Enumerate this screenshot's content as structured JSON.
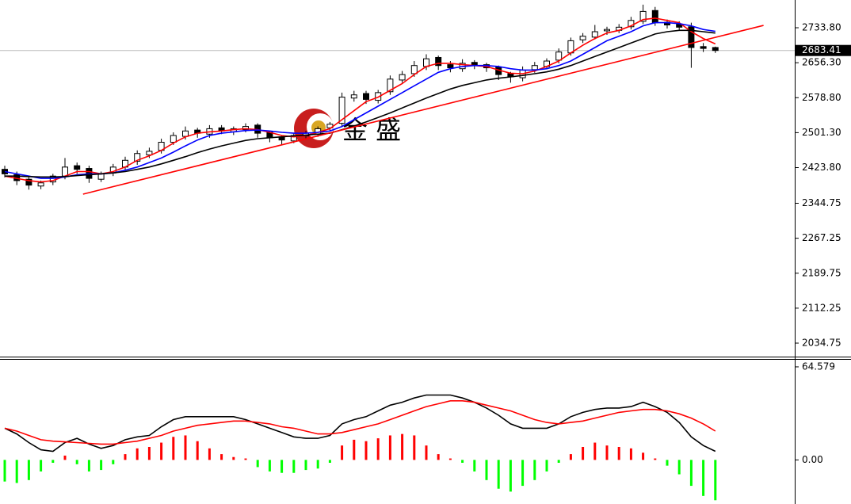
{
  "watermark": "金 盛",
  "chart_data": [
    {
      "type": "candlestick",
      "ylim": [
        2004.9,
        2795.3
      ],
      "yticks": [
        {
          "value": 2733.8,
          "label": "2733.80"
        },
        {
          "value": 2656.3,
          "label": "2656.30"
        },
        {
          "value": 2578.8,
          "label": "2578.80"
        },
        {
          "value": 2501.3,
          "label": "2501.30"
        },
        {
          "value": 2423.8,
          "label": "2423.80"
        },
        {
          "value": 2344.75,
          "label": "2344.75"
        },
        {
          "value": 2267.25,
          "label": "2267.25"
        },
        {
          "value": 2189.75,
          "label": "2189.75"
        },
        {
          "value": 2112.25,
          "label": "2112.25"
        },
        {
          "value": 2034.75,
          "label": "2034.75"
        }
      ],
      "current_price": 2683.41,
      "up_color": "#ffffff",
      "down_color": "#000000",
      "open": [
        2420,
        2408,
        2398,
        2383,
        2392,
        2405,
        2428,
        2422,
        2398,
        2412,
        2425,
        2438,
        2452,
        2462,
        2480,
        2493,
        2507,
        2498,
        2512,
        2503,
        2508,
        2518,
        2502,
        2492,
        2483,
        2494,
        2498,
        2512,
        2522,
        2578,
        2588,
        2573,
        2592,
        2618,
        2632,
        2648,
        2668,
        2652,
        2643,
        2657,
        2652,
        2646,
        2632,
        2623,
        2641,
        2648,
        2662,
        2678,
        2707,
        2713,
        2727,
        2728,
        2736,
        2748,
        2772,
        2746,
        2742,
        2736,
        2692,
        2690
      ],
      "high": [
        2428,
        2415,
        2405,
        2395,
        2410,
        2445,
        2435,
        2428,
        2415,
        2432,
        2448,
        2462,
        2468,
        2488,
        2502,
        2515,
        2512,
        2518,
        2518,
        2515,
        2522,
        2522,
        2506,
        2495,
        2500,
        2505,
        2515,
        2525,
        2590,
        2594,
        2594,
        2596,
        2628,
        2638,
        2660,
        2675,
        2672,
        2660,
        2664,
        2662,
        2656,
        2650,
        2636,
        2648,
        2658,
        2666,
        2688,
        2712,
        2722,
        2740,
        2736,
        2742,
        2758,
        2785,
        2780,
        2752,
        2748,
        2745,
        2700,
        2692
      ],
      "low": [
        2402,
        2385,
        2375,
        2376,
        2385,
        2398,
        2410,
        2390,
        2392,
        2405,
        2418,
        2430,
        2445,
        2455,
        2474,
        2486,
        2490,
        2490,
        2498,
        2496,
        2502,
        2490,
        2480,
        2475,
        2478,
        2488,
        2492,
        2505,
        2515,
        2570,
        2565,
        2566,
        2585,
        2612,
        2625,
        2640,
        2640,
        2635,
        2636,
        2642,
        2636,
        2618,
        2612,
        2615,
        2634,
        2642,
        2655,
        2672,
        2700,
        2708,
        2718,
        2722,
        2730,
        2742,
        2738,
        2732,
        2728,
        2645,
        2680,
        2678
      ],
      "close": [
        2410,
        2395,
        2385,
        2390,
        2405,
        2425,
        2420,
        2400,
        2410,
        2425,
        2440,
        2455,
        2460,
        2480,
        2495,
        2505,
        2500,
        2510,
        2505,
        2510,
        2515,
        2500,
        2490,
        2485,
        2495,
        2500,
        2510,
        2520,
        2580,
        2585,
        2575,
        2590,
        2620,
        2630,
        2650,
        2665,
        2650,
        2645,
        2655,
        2650,
        2645,
        2630,
        2625,
        2640,
        2650,
        2660,
        2680,
        2705,
        2715,
        2725,
        2730,
        2735,
        2750,
        2770,
        2745,
        2740,
        2735,
        2690,
        2688,
        2683.41
      ],
      "series": [
        {
          "color": "#ff0000",
          "values": [
            2405,
            2400,
            2395,
            2392,
            2395,
            2405,
            2415,
            2415,
            2410,
            2415,
            2425,
            2440,
            2450,
            2462,
            2478,
            2492,
            2500,
            2503,
            2505,
            2508,
            2510,
            2508,
            2502,
            2495,
            2492,
            2495,
            2502,
            2510,
            2530,
            2550,
            2570,
            2580,
            2595,
            2610,
            2630,
            2648,
            2655,
            2655,
            2652,
            2650,
            2648,
            2640,
            2633,
            2632,
            2638,
            2648,
            2660,
            2678,
            2695,
            2710,
            2722,
            2728,
            2738,
            2752,
            2755,
            2750,
            2745,
            2725,
            2710,
            2698
          ]
        },
        {
          "color": "#0000ff",
          "values": [
            2415,
            2410,
            2405,
            2400,
            2400,
            2403,
            2408,
            2410,
            2410,
            2412,
            2418,
            2425,
            2435,
            2445,
            2458,
            2472,
            2485,
            2495,
            2500,
            2503,
            2506,
            2507,
            2505,
            2502,
            2500,
            2500,
            2502,
            2505,
            2515,
            2530,
            2545,
            2560,
            2575,
            2590,
            2605,
            2620,
            2635,
            2643,
            2648,
            2650,
            2650,
            2648,
            2643,
            2640,
            2640,
            2643,
            2650,
            2660,
            2675,
            2690,
            2705,
            2715,
            2725,
            2738,
            2745,
            2745,
            2743,
            2738,
            2730,
            2726
          ]
        },
        {
          "color": "#000000",
          "values": [
            2405,
            2405,
            2404,
            2403,
            2403,
            2404,
            2406,
            2408,
            2410,
            2412,
            2415,
            2420,
            2425,
            2432,
            2440,
            2448,
            2457,
            2465,
            2472,
            2478,
            2484,
            2488,
            2490,
            2492,
            2494,
            2496,
            2498,
            2500,
            2508,
            2516,
            2525,
            2535,
            2545,
            2556,
            2567,
            2578,
            2588,
            2598,
            2606,
            2612,
            2618,
            2622,
            2625,
            2628,
            2632,
            2636,
            2642,
            2650,
            2660,
            2670,
            2680,
            2690,
            2700,
            2710,
            2720,
            2725,
            2728,
            2728,
            2725,
            2722
          ]
        }
      ],
      "trendline": {
        "color": "#ff0000",
        "x": [
          6.5,
          63
        ],
        "y": [
          2365,
          2739
        ]
      }
    },
    {
      "type": "macd",
      "ylim": [
        -30.6,
        70.05
      ],
      "yticks": [
        64.579,
        {
          "value": 0,
          "label": "0.00"
        }
      ],
      "up_color": "#ff0000",
      "down_color": "#00ff00",
      "histogram": [
        -15,
        -16,
        -14,
        -8,
        -2,
        3,
        -3,
        -8,
        -7,
        -3,
        4,
        8,
        9,
        12,
        16,
        17,
        13,
        8,
        4,
        2,
        1,
        -5,
        -8,
        -9,
        -9,
        -7,
        -6,
        -2,
        10,
        14,
        13,
        15,
        17,
        18,
        17,
        10,
        4,
        1,
        -2,
        -8,
        -14,
        -20,
        -22,
        -18,
        -14,
        -8,
        -2,
        4,
        9,
        12,
        10,
        9,
        8,
        5,
        1,
        -4,
        -10,
        -18,
        -25,
        -28
      ],
      "series": [
        {
          "color": "#000000",
          "values": [
            22,
            18,
            12,
            7,
            6,
            12,
            15,
            11,
            8,
            10,
            14,
            16,
            17,
            23,
            28,
            30,
            30,
            30,
            30,
            30,
            28,
            25,
            22,
            19,
            16,
            15,
            15,
            17,
            25,
            28,
            30,
            34,
            38,
            40,
            43,
            45,
            45,
            45,
            43,
            40,
            36,
            31,
            25,
            22,
            22,
            22,
            25,
            30,
            33,
            35,
            36,
            36,
            37,
            40,
            37,
            33,
            26,
            16,
            10,
            6
          ]
        },
        {
          "color": "#ff0000",
          "values": [
            22,
            20,
            17,
            14,
            13,
            12.5,
            12,
            11.5,
            11,
            11,
            12,
            13,
            15,
            17,
            20,
            22,
            24,
            25,
            26,
            27,
            27,
            26,
            25,
            23,
            22,
            20,
            18,
            18,
            19,
            21,
            23,
            25,
            28,
            31,
            34,
            37,
            39,
            41,
            41,
            40,
            38,
            36,
            34,
            31,
            28,
            26,
            25,
            26,
            27,
            29,
            31,
            33,
            34,
            35,
            35,
            34,
            32,
            29,
            25,
            20
          ]
        }
      ]
    }
  ]
}
